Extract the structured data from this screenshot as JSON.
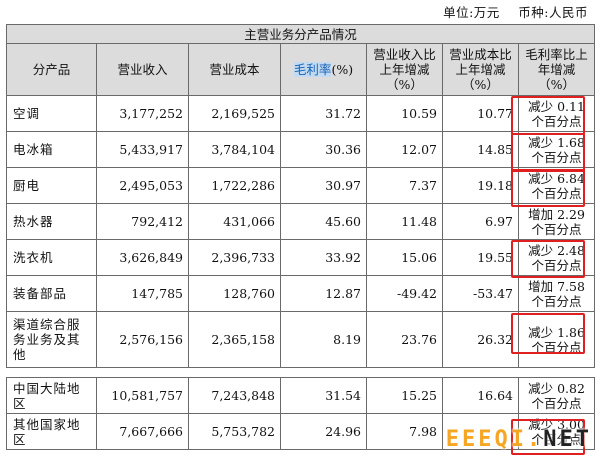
{
  "unit_note": {
    "unit": "单位:万元",
    "currency": "币种:人民币"
  },
  "table": {
    "title": "主营业务分产品情况",
    "headers": {
      "product": "分产品",
      "revenue": "营业收入",
      "cost": "营业成本",
      "margin_highlight": "毛利率",
      "margin_suffix": "(%)",
      "revenue_change": "营业收入比上年增减（%）",
      "cost_change": "营业成本比上年增减（%）",
      "margin_change": "毛利率比上年增减（%）"
    },
    "products": [
      {
        "name": "空调",
        "revenue": "3,177,252",
        "cost": "2,169,525",
        "margin": "31.72",
        "revenue_change": "10.59",
        "cost_change": "10.77",
        "margin_change": "减少 0.11 个百分点"
      },
      {
        "name": "电冰箱",
        "revenue": "5,433,917",
        "cost": "3,784,104",
        "margin": "30.36",
        "revenue_change": "12.07",
        "cost_change": "14.85",
        "margin_change": "减少 1.68 个百分点"
      },
      {
        "name": "厨电",
        "revenue": "2,495,053",
        "cost": "1,722,286",
        "margin": "30.97",
        "revenue_change": "7.37",
        "cost_change": "19.18",
        "margin_change": "减少 6.84 个百分点"
      },
      {
        "name": "热水器",
        "revenue": "792,412",
        "cost": "431,066",
        "margin": "45.60",
        "revenue_change": "11.48",
        "cost_change": "6.97",
        "margin_change": "增加 2.29 个百分点"
      },
      {
        "name": "洗衣机",
        "revenue": "3,626,849",
        "cost": "2,396,733",
        "margin": "33.92",
        "revenue_change": "15.06",
        "cost_change": "19.55",
        "margin_change": "减少 2.48 个百分点"
      },
      {
        "name": "装备部品",
        "revenue": "147,785",
        "cost": "128,760",
        "margin": "12.87",
        "revenue_change": "-49.42",
        "cost_change": "-53.47",
        "margin_change": "增加 7.58 个百分点"
      },
      {
        "name": "渠道综合服务业务及其他",
        "revenue": "2,576,156",
        "cost": "2,365,158",
        "margin": "8.19",
        "revenue_change": "23.76",
        "cost_change": "26.32",
        "margin_change": "减少 1.86 个百分点"
      }
    ],
    "regions": [
      {
        "name": "中国大陆地区",
        "revenue": "10,581,757",
        "cost": "7,243,848",
        "margin": "31.54",
        "revenue_change": "15.25",
        "cost_change": "16.64",
        "margin_change": "减少 0.82 个百分点"
      },
      {
        "name": "其他国家地区",
        "revenue": "7,667,666",
        "cost": "5,753,782",
        "margin": "24.96",
        "revenue_change": "7.98",
        "cost_change": "",
        "margin_change": "减少 3.00 个百分点"
      }
    ]
  },
  "watermark": {
    "part1": "EEEQI",
    "dot": ".",
    "part2": "NET"
  }
}
